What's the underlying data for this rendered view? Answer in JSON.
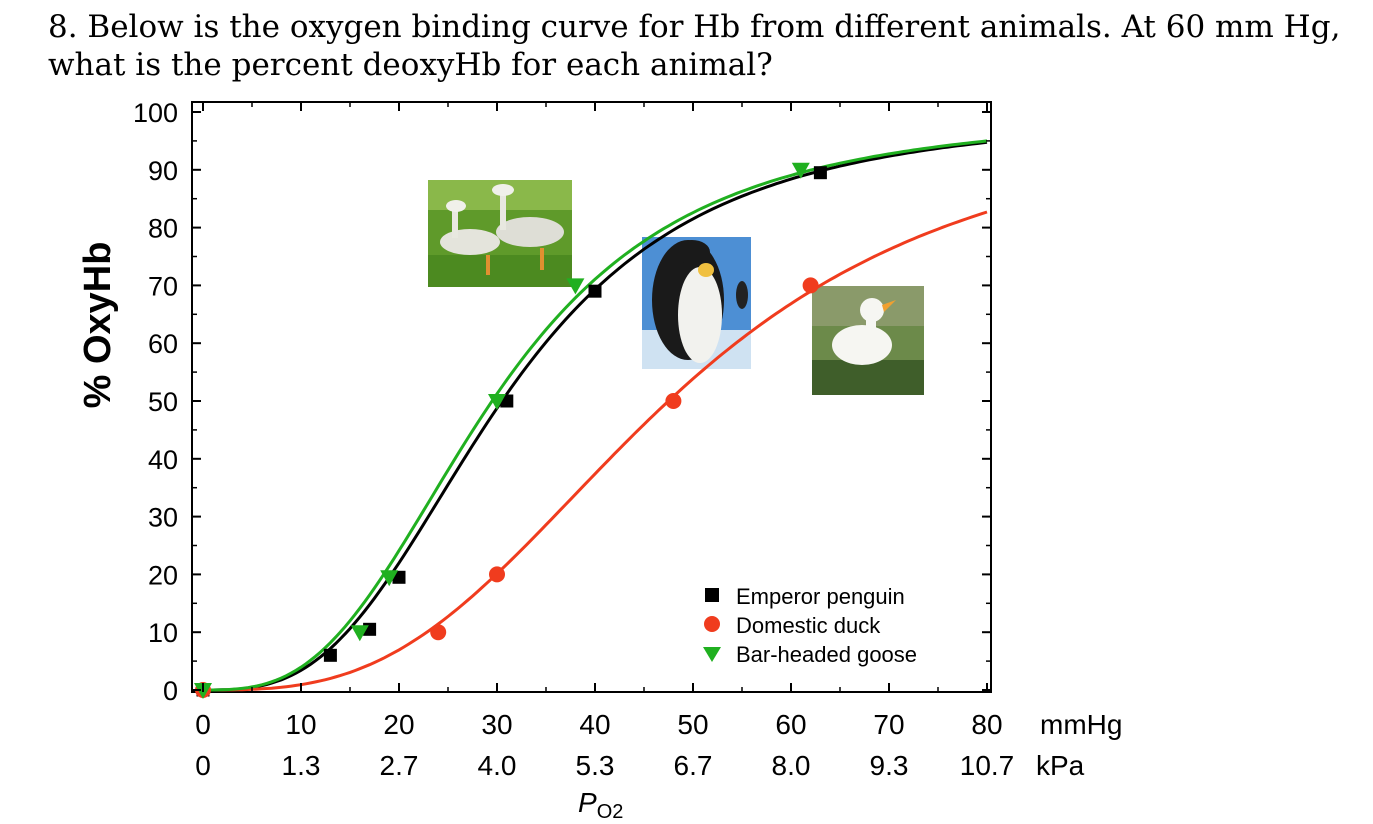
{
  "question": "8.  Below is the oxygen binding curve for Hb from different animals.  At 60 mm Hg, what is the percent deoxyHb for each animal?",
  "colors": {
    "penguin": "#000000",
    "duck": "#f03c1e",
    "goose": "#20b020"
  },
  "chart_data": {
    "type": "line",
    "ylabel": "% OxyHb",
    "xlabel_main": "P",
    "xlabel_sub": "O2",
    "x_unit_primary": "mmHg",
    "x_unit_secondary": "kPa",
    "xlim": [
      0,
      80
    ],
    "ylim": [
      0,
      100
    ],
    "x_ticks": [
      0,
      10,
      20,
      30,
      40,
      50,
      60,
      70,
      80
    ],
    "x_tick_labels": [
      "0",
      "10",
      "20",
      "30",
      "40",
      "50",
      "60",
      "70",
      "80"
    ],
    "x_tick_labels_secondary": [
      "0",
      "1.3",
      "2.7",
      "4.0",
      "5.3",
      "6.7",
      "8.0",
      "9.3",
      "10.7"
    ],
    "y_ticks": [
      0,
      10,
      20,
      30,
      40,
      50,
      60,
      70,
      80,
      90,
      100
    ],
    "y_tick_labels": [
      "0",
      "10",
      "20",
      "30",
      "40",
      "50",
      "60",
      "70",
      "80",
      "90",
      "100"
    ],
    "grid": false,
    "legend_position": "bottom-right",
    "series": [
      {
        "name": "Emperor penguin",
        "marker": "square",
        "color": "#000000",
        "p50": 30.5,
        "hill_n": 3.0,
        "points": [
          [
            0,
            0
          ],
          [
            13,
            6
          ],
          [
            17,
            10.5
          ],
          [
            20,
            19.5
          ],
          [
            31,
            50
          ],
          [
            40,
            69
          ],
          [
            63,
            89.5
          ]
        ]
      },
      {
        "name": "Domestic duck",
        "marker": "circle",
        "color": "#f03c1e",
        "p50": 47.5,
        "hill_n": 3.0,
        "points": [
          [
            0,
            0
          ],
          [
            24,
            10
          ],
          [
            30,
            20
          ],
          [
            48,
            50
          ],
          [
            62,
            70
          ]
        ]
      },
      {
        "name": "Bar-headed goose",
        "marker": "triangle-down",
        "color": "#20b020",
        "p50": 29.5,
        "hill_n": 2.95,
        "points": [
          [
            0,
            0
          ],
          [
            16,
            10
          ],
          [
            19,
            19.5
          ],
          [
            30,
            50
          ],
          [
            38,
            70
          ],
          [
            61,
            90
          ]
        ]
      }
    ]
  },
  "photos": [
    {
      "subject": "bar-headed geese photo"
    },
    {
      "subject": "emperor penguin photo"
    },
    {
      "subject": "domestic duck photo"
    }
  ]
}
